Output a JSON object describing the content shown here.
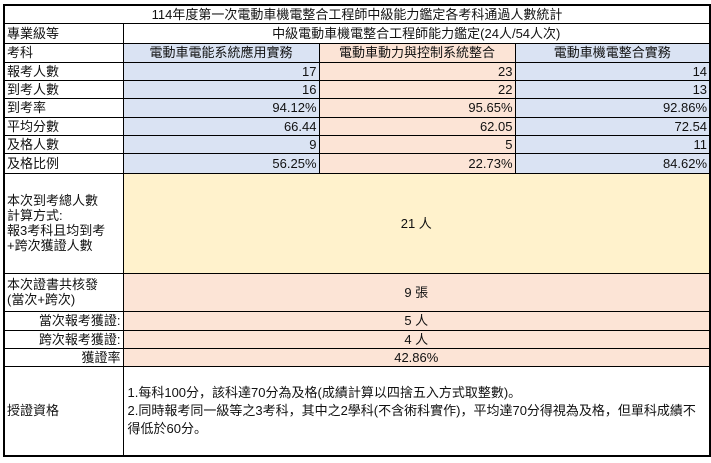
{
  "title": "114年度第一次電動車機電整合工程師中級能力鑑定各考科通過人數統計",
  "level_label": "專業級等",
  "level_value": "中級電動車機電整合工程師能力鑑定(24人/54人次)",
  "subject_label": "考科",
  "subjects": [
    "電動車電能系統應用實務",
    "電動車動力與控制系統整合",
    "電動車機電整合實務"
  ],
  "rows": [
    {
      "label": "報考人數",
      "values": [
        "17",
        "23",
        "14"
      ]
    },
    {
      "label": "到考人數",
      "values": [
        "16",
        "22",
        "13"
      ]
    },
    {
      "label": "到考率",
      "values": [
        "94.12%",
        "95.65%",
        "92.86%"
      ]
    },
    {
      "label": "平均分數",
      "values": [
        "66.44",
        "62.05",
        "72.54"
      ]
    },
    {
      "label": "及格人數",
      "values": [
        "9",
        "5",
        "11"
      ]
    },
    {
      "label": "及格比例",
      "values": [
        "56.25%",
        "22.73%",
        "84.62%"
      ]
    }
  ],
  "total_attendees": {
    "label_lines": [
      "本次到考總人數",
      "計算方式:",
      "報3考科且均到考",
      "+跨次獲證人數"
    ],
    "value": "21 人"
  },
  "certificates": {
    "label_lines": [
      "本次證書共核發",
      "(當次+跨次)"
    ],
    "value": "9 張"
  },
  "current_certified": {
    "label": "當次報考獲證:",
    "value": "5 人"
  },
  "cross_certified": {
    "label": "跨次報考獲證:",
    "value": "4 人"
  },
  "cert_rate": {
    "label": "獲證率",
    "value": "42.86%"
  },
  "qualification": {
    "label": "授證資格",
    "lines": [
      "1.每科100分，該科達70分為及格(成績計算以四捨五入方式取整數)。",
      "2.同時報考同一級等之3考科，其中之2學科(不含術科實作)，平均達70分得視為及格，但單科成績不得低於60分。"
    ]
  },
  "colors": {
    "blue": "#dae3f3",
    "peach": "#fce4d6",
    "yellow": "#fff2cc"
  }
}
